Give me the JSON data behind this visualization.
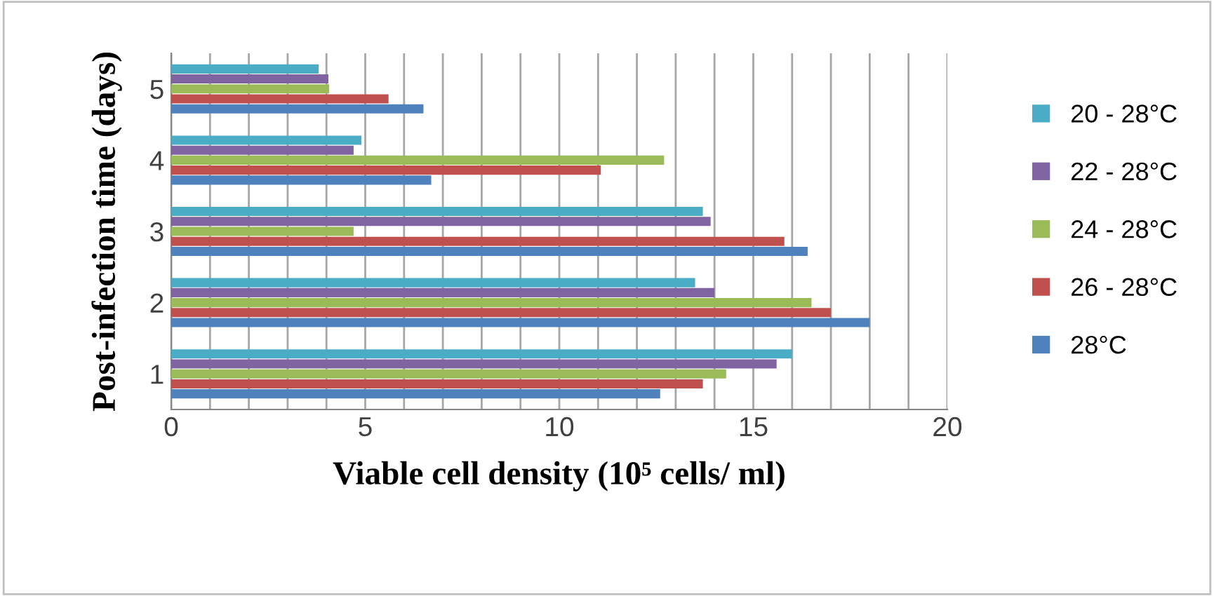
{
  "chart_data": {
    "type": "bar",
    "orientation": "horizontal",
    "xlabel": "Viable cell density (10⁵ cells/ ml)",
    "ylabel": "Post-infection time (days)",
    "categories": [
      "5",
      "4",
      "3",
      "2",
      "1"
    ],
    "series": [
      {
        "name": "20 - 28°C",
        "color": "#4bacc6",
        "values": [
          3.8,
          4.9,
          13.7,
          13.5,
          16.0
        ]
      },
      {
        "name": "22 - 28°C",
        "color": "#8064a2",
        "values": [
          4.05,
          4.7,
          13.9,
          14.0,
          15.6
        ]
      },
      {
        "name": "24 - 28°C",
        "color": "#9bbb59",
        "values": [
          4.07,
          12.7,
          4.7,
          16.5,
          14.3
        ]
      },
      {
        "name": "26 - 28°C",
        "color": "#c0504d",
        "values": [
          5.6,
          11.07,
          15.8,
          17.0,
          13.7
        ]
      },
      {
        "name": "28°C",
        "color": "#4f81bd",
        "values": [
          6.5,
          6.7,
          16.4,
          18.0,
          12.6
        ]
      }
    ],
    "xlim": [
      0,
      20
    ],
    "xticks": [
      0,
      {
        "value": 1,
        "label": null
      },
      {
        "value": 2,
        "label": null
      },
      {
        "value": 3,
        "label": null
      },
      {
        "value": 4,
        "label": null
      },
      5,
      {
        "value": 6,
        "label": null
      },
      {
        "value": 7,
        "label": null
      },
      {
        "value": 8,
        "label": null
      },
      {
        "value": 9,
        "label": null
      },
      10,
      {
        "value": 11,
        "label": null
      },
      {
        "value": 12,
        "label": null
      },
      {
        "value": 13,
        "label": null
      },
      {
        "value": 14,
        "label": null
      },
      15,
      {
        "value": 16,
        "label": null
      },
      {
        "value": 17,
        "label": null
      },
      {
        "value": 18,
        "label": null
      },
      {
        "value": 19,
        "label": null
      },
      20
    ],
    "grid": "x",
    "legend": "right"
  }
}
